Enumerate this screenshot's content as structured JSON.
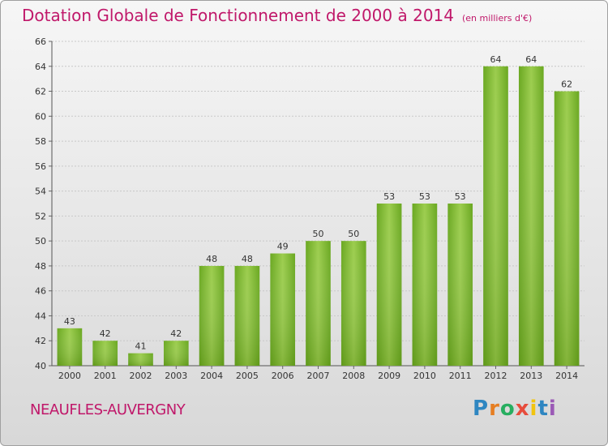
{
  "header": {
    "title": "Dotation Globale de Fonctionnement de 2000 à 2014",
    "subtitle": "(en milliers d'€)"
  },
  "footer": {
    "commune": "NEAUFLES-AUVERGNY",
    "logo_letters": [
      "P",
      "r",
      "o",
      "x",
      "i",
      "t",
      "i"
    ],
    "logo_colors": [
      "#2e86c1",
      "#e67e22",
      "#27ae60",
      "#e74c3c",
      "#f1c40f",
      "#2e86c1",
      "#9b59b6"
    ]
  },
  "chart_data": {
    "type": "bar",
    "title": "Dotation Globale de Fonctionnement de 2000 à 2014",
    "subtitle": "(en milliers d'€)",
    "xlabel": "",
    "ylabel": "",
    "categories": [
      "2000",
      "2001",
      "2002",
      "2003",
      "2004",
      "2005",
      "2006",
      "2007",
      "2008",
      "2009",
      "2010",
      "2011",
      "2012",
      "2013",
      "2014"
    ],
    "values": [
      43,
      42,
      41,
      42,
      48,
      48,
      49,
      50,
      50,
      53,
      53,
      53,
      64,
      64,
      62
    ],
    "ylim": [
      40,
      66
    ],
    "yticks": [
      40,
      42,
      44,
      46,
      48,
      50,
      52,
      54,
      56,
      58,
      60,
      62,
      64,
      66
    ],
    "grid": true,
    "bar_color": "#8cc63f",
    "bar_color_dark": "#5d9a18"
  }
}
